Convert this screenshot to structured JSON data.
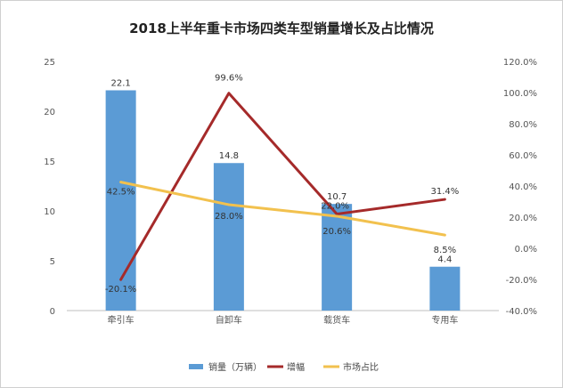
{
  "chart_data": {
    "type": "bar",
    "title": "2018上半年重卡市场四类车型销量增长及占比情况",
    "categories": [
      "牵引车",
      "自卸车",
      "载货车",
      "专用车"
    ],
    "series": [
      {
        "name": "销量（万辆）",
        "type": "bar",
        "axis": "left",
        "values": [
          22.1,
          14.8,
          10.7,
          4.4
        ],
        "labels": [
          "22.1",
          "14.8",
          "10.7",
          "4.4"
        ],
        "color": "#5b9bd5"
      },
      {
        "name": "增幅",
        "type": "line",
        "axis": "right",
        "values": [
          -20.1,
          99.6,
          22.0,
          31.4
        ],
        "labels": [
          "-20.1%",
          "99.6%",
          "22.0%",
          "31.4%"
        ],
        "color": "#a52a2a"
      },
      {
        "name": "市场占比",
        "type": "line",
        "axis": "right",
        "values": [
          42.5,
          28.0,
          20.6,
          8.5
        ],
        "labels": [
          "42.5%",
          "28.0%",
          "20.6%",
          "8.5%"
        ],
        "color": "#f2c14e"
      }
    ],
    "left_axis": {
      "ylim": [
        0,
        25
      ],
      "ticks": [
        "0",
        "5",
        "10",
        "15",
        "20",
        "25"
      ]
    },
    "right_axis": {
      "ylim": [
        -40,
        120
      ],
      "ticks": [
        "-40.0%",
        "-20.0%",
        "0.0%",
        "20.0%",
        "40.0%",
        "60.0%",
        "80.0%",
        "100.0%",
        "120.0%"
      ]
    },
    "grid": false,
    "legend_position": "bottom"
  }
}
